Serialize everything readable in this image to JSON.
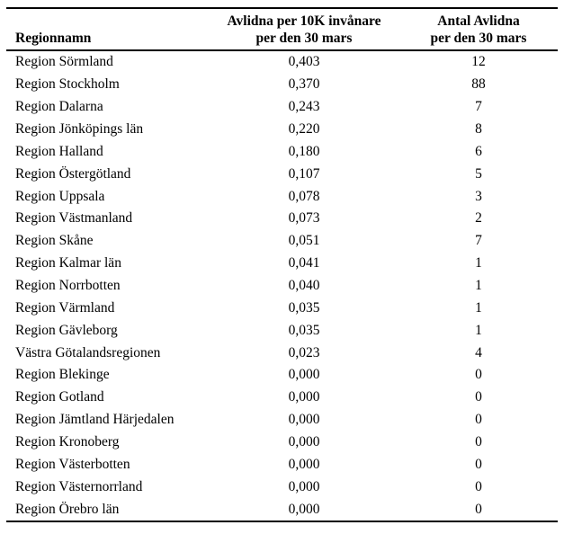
{
  "table": {
    "columns": [
      {
        "label": "Regionnamn"
      },
      {
        "line1": "Avlidna per 10K invånare",
        "line2": "per den 30 mars"
      },
      {
        "line1": "Antal Avlidna",
        "line2": "per den 30 mars"
      }
    ],
    "rows": [
      {
        "region": "Region Sörmland",
        "per10k": "0,403",
        "count": "12"
      },
      {
        "region": "Region Stockholm",
        "per10k": "0,370",
        "count": "88"
      },
      {
        "region": "Region Dalarna",
        "per10k": "0,243",
        "count": "7"
      },
      {
        "region": "Region Jönköpings län",
        "per10k": "0,220",
        "count": "8"
      },
      {
        "region": "Region Halland",
        "per10k": "0,180",
        "count": "6"
      },
      {
        "region": "Region Östergötland",
        "per10k": "0,107",
        "count": "5"
      },
      {
        "region": "Region Uppsala",
        "per10k": "0,078",
        "count": "3"
      },
      {
        "region": "Region Västmanland",
        "per10k": "0,073",
        "count": "2"
      },
      {
        "region": "Region Skåne",
        "per10k": "0,051",
        "count": "7"
      },
      {
        "region": "Region Kalmar län",
        "per10k": "0,041",
        "count": "1"
      },
      {
        "region": "Region Norrbotten",
        "per10k": "0,040",
        "count": "1"
      },
      {
        "region": "Region Värmland",
        "per10k": "0,035",
        "count": "1"
      },
      {
        "region": "Region Gävleborg",
        "per10k": "0,035",
        "count": "1"
      },
      {
        "region": "Västra Götalandsregionen",
        "per10k": "0,023",
        "count": "4"
      },
      {
        "region": "Region Blekinge",
        "per10k": "0,000",
        "count": "0"
      },
      {
        "region": "Region Gotland",
        "per10k": "0,000",
        "count": "0"
      },
      {
        "region": "Region Jämtland Härjedalen",
        "per10k": "0,000",
        "count": "0"
      },
      {
        "region": "Region Kronoberg",
        "per10k": "0,000",
        "count": "0"
      },
      {
        "region": "Region Västerbotten",
        "per10k": "0,000",
        "count": "0"
      },
      {
        "region": "Region Västernorrland",
        "per10k": "0,000",
        "count": "0"
      },
      {
        "region": "Region Örebro län",
        "per10k": "0,000",
        "count": "0"
      }
    ]
  }
}
